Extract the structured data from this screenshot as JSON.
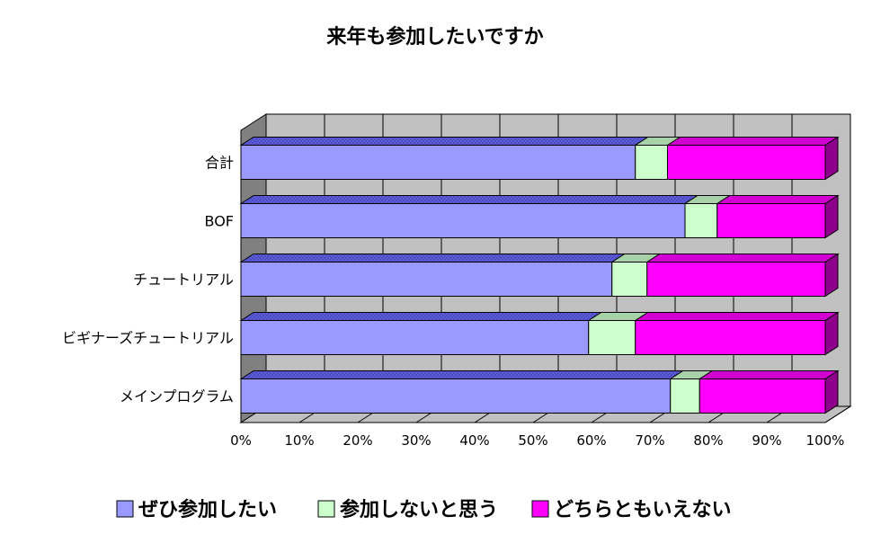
{
  "chart_data": {
    "type": "bar",
    "orientation": "horizontal",
    "stacked": "percent",
    "three_d": true,
    "title": "来年も参加したいですか",
    "categories": [
      "合計",
      "BOF",
      "チュートリアル",
      "ビギナーズチュートリアル",
      "メインプログラム"
    ],
    "series": [
      {
        "name": "ぜひ参加したい",
        "color": "#9999ff",
        "values": [
          67.5,
          76,
          63.5,
          59.5,
          73.5
        ]
      },
      {
        "name": "参加しないと思う",
        "color": "#ccffcc",
        "values": [
          5.5,
          5.5,
          6,
          8,
          5
        ]
      },
      {
        "name": "どちらともいえない",
        "color": "#ff00ff",
        "values": [
          27,
          18.5,
          30.5,
          32.5,
          21.5
        ]
      }
    ],
    "xlim": [
      0,
      100
    ],
    "x_ticks": [
      "0%",
      "10%",
      "20%",
      "30%",
      "40%",
      "50%",
      "60%",
      "70%",
      "80%",
      "90%",
      "100%"
    ],
    "grid": true,
    "legend_position": "bottom"
  }
}
